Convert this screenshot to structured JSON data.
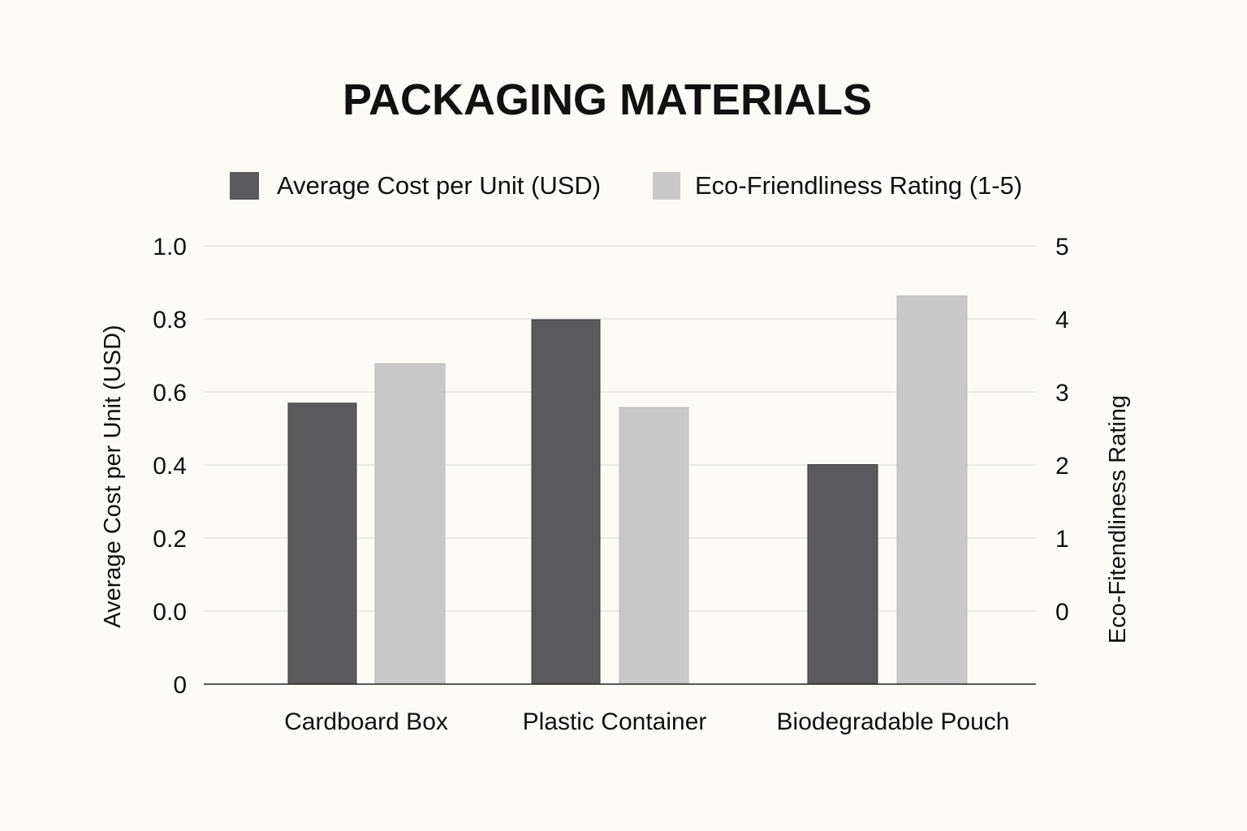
{
  "chart_data": {
    "type": "bar",
    "title": "PACKAGING MATERIALS",
    "categories": [
      "Cardboard Box",
      "Plastic Container",
      "Biodegradable Pouch"
    ],
    "series": [
      {
        "name": "Average Cost per Unit (USD)",
        "axis": "left",
        "color": "#5a5a5c",
        "values": [
          0.64,
          0.83,
          0.5
        ]
      },
      {
        "name": "Eco-Friendliness Rating (1-5)",
        "axis": "right",
        "color": "#c9c9c9",
        "values": [
          3.65,
          3.15,
          4.42
        ]
      }
    ],
    "ylabel": "Average Cost per Unit (USD)",
    "ylabel_right": "Eco-Fitendliness Rating",
    "ylim": [
      0,
      1.0
    ],
    "ylim_right": [
      0,
      5
    ],
    "left_tick_labels": [
      "1.0",
      "0.8",
      "0.6",
      "0.4",
      "0.2",
      "0.0",
      "0"
    ],
    "right_tick_labels": [
      "5",
      "4",
      "3",
      "2",
      "1",
      "0"
    ],
    "grid": true,
    "legend_position": "top-center"
  }
}
